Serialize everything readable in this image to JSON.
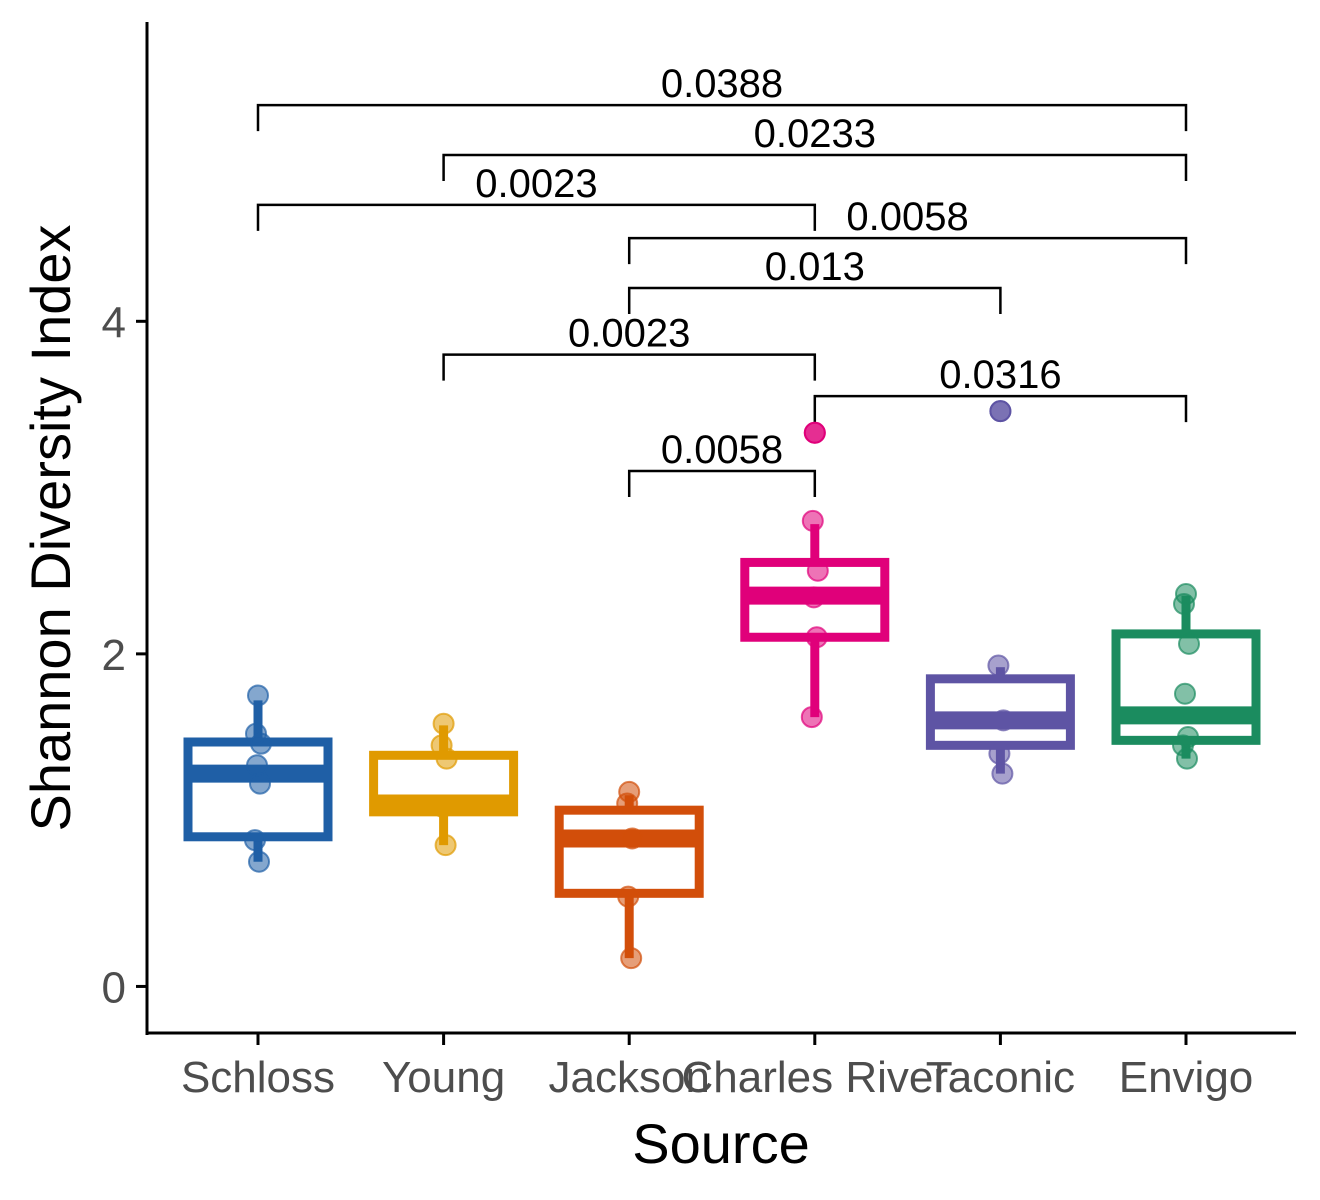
{
  "chart_data": {
    "type": "boxplot",
    "xlabel": "Source",
    "ylabel": "Shannon Diversity Index",
    "ylim": [
      -0.28,
      5.8
    ],
    "yticks": [
      0,
      2,
      4
    ],
    "grid": false,
    "legend": "none",
    "categories": [
      "Schloss",
      "Young",
      "Jackson",
      "Charles River",
      "Taconic",
      "Envigo"
    ],
    "colors": [
      "#1f5fa6",
      "#e09a00",
      "#d24e0a",
      "#e0007a",
      "#5e54a4",
      "#1b8c5f"
    ],
    "boxes": [
      {
        "name": "Schloss",
        "q1": 0.9,
        "median": 1.28,
        "q3": 1.47,
        "whisker_low": 0.75,
        "whisker_high": 1.72,
        "outliers": []
      },
      {
        "name": "Young",
        "q1": 1.05,
        "median": 1.1,
        "q3": 1.39,
        "whisker_low": 0.85,
        "whisker_high": 1.57,
        "outliers": []
      },
      {
        "name": "Jackson",
        "q1": 0.56,
        "median": 0.89,
        "q3": 1.06,
        "whisker_low": 0.17,
        "whisker_high": 1.15,
        "outliers": []
      },
      {
        "name": "Charles River",
        "q1": 2.1,
        "median": 2.35,
        "q3": 2.55,
        "whisker_low": 1.62,
        "whisker_high": 2.78,
        "outliers": [
          3.33
        ]
      },
      {
        "name": "Taconic",
        "q1": 1.45,
        "median": 1.6,
        "q3": 1.85,
        "whisker_low": 1.28,
        "whisker_high": 1.92,
        "outliers": [
          3.46
        ]
      },
      {
        "name": "Envigo",
        "q1": 1.48,
        "median": 1.63,
        "q3": 2.12,
        "whisker_low": 1.37,
        "whisker_high": 2.35,
        "outliers": []
      }
    ],
    "points": [
      [
        1.75,
        1.52,
        1.46,
        1.33,
        1.22,
        0.88,
        0.75
      ],
      [
        1.58,
        1.45,
        1.37,
        1.08,
        0.85
      ],
      [
        1.17,
        1.1,
        0.89,
        0.54,
        0.17
      ],
      [
        3.33,
        2.8,
        2.5,
        2.34,
        2.1,
        1.62
      ],
      [
        3.46,
        1.93,
        1.6,
        1.4,
        1.28
      ],
      [
        2.36,
        2.3,
        2.06,
        1.76,
        1.5,
        1.45,
        1.37
      ]
    ],
    "comparisons": [
      {
        "from": "Schloss",
        "to": "Envigo",
        "y": 5.3,
        "label": "0.0388"
      },
      {
        "from": "Young",
        "to": "Envigo",
        "y": 5.0,
        "label": "0.0233"
      },
      {
        "from": "Schloss",
        "to": "Charles River",
        "y": 4.7,
        "label": "0.0023"
      },
      {
        "from": "Jackson",
        "to": "Envigo",
        "y": 4.5,
        "label": "0.0058"
      },
      {
        "from": "Jackson",
        "to": "Taconic",
        "y": 4.2,
        "label": "0.013"
      },
      {
        "from": "Young",
        "to": "Charles River",
        "y": 3.8,
        "label": "0.0023"
      },
      {
        "from": "Charles River",
        "to": "Envigo",
        "y": 3.55,
        "label": "0.0316"
      },
      {
        "from": "Jackson",
        "to": "Charles River",
        "y": 3.1,
        "label": "0.0058"
      }
    ]
  }
}
